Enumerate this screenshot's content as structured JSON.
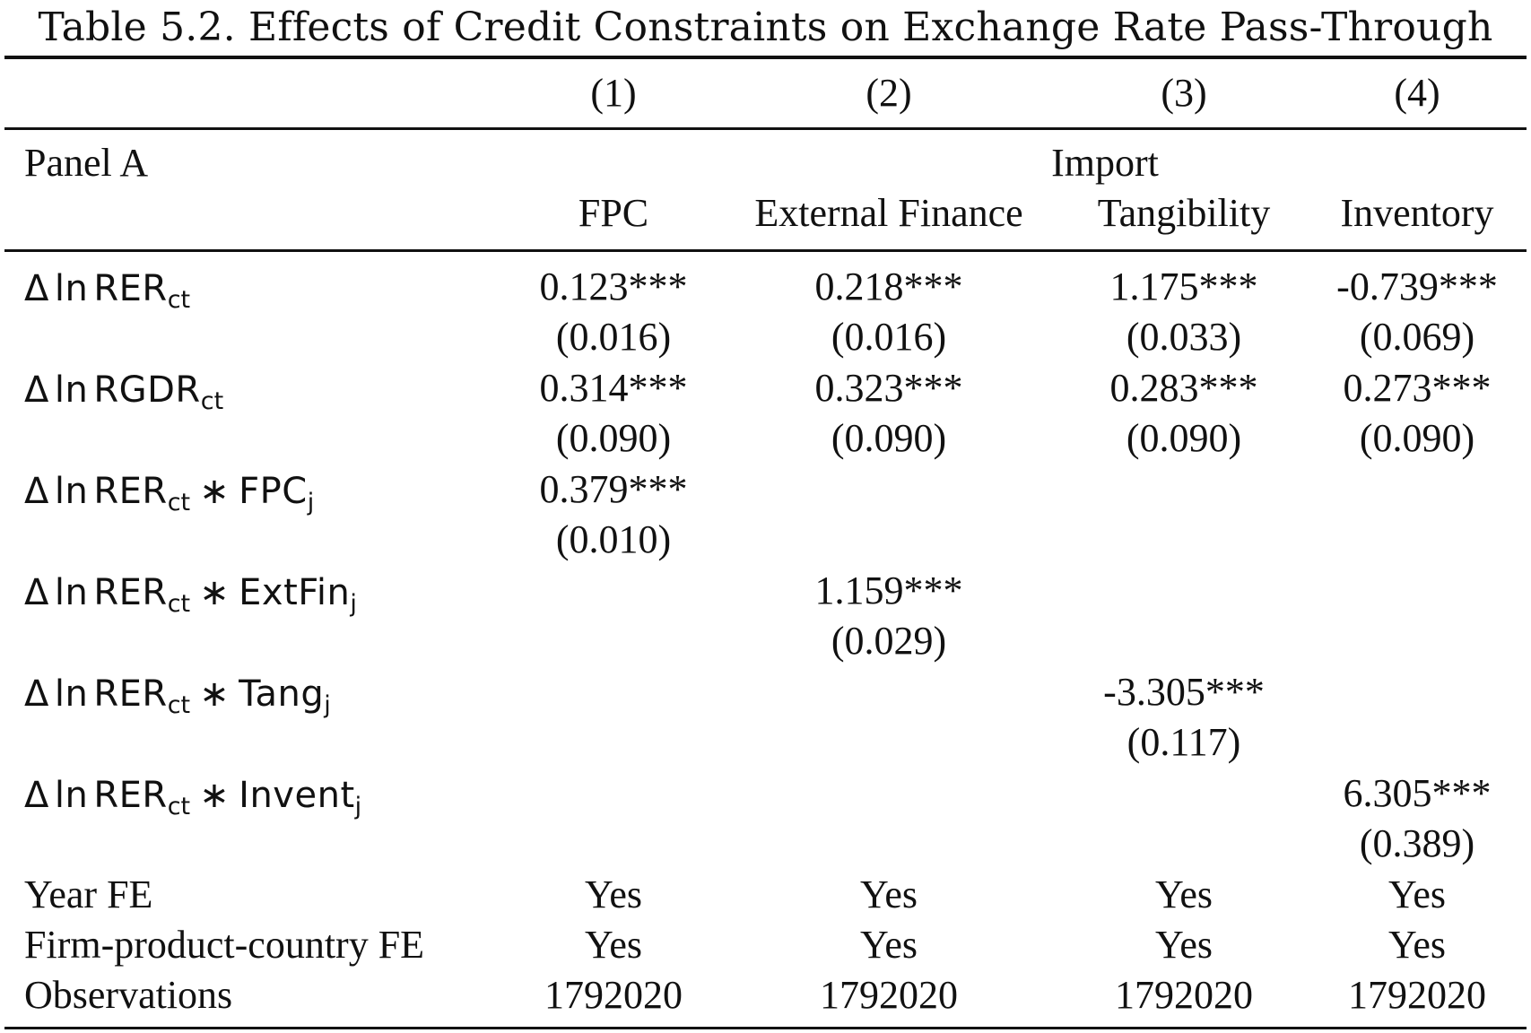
{
  "title": "Table 5.2. Effects of Credit Constraints on Exchange Rate Pass-Through",
  "columns": [
    "(1)",
    "(2)",
    "(3)",
    "(4)"
  ],
  "panel_label": "Panel A",
  "group_header": "Import",
  "subheaders": [
    "FPC",
    "External Finance",
    "Tangibility",
    "Inventory"
  ],
  "math": {
    "delta": "Δ",
    "ln": "ln",
    "op": "∗"
  },
  "rows": [
    {
      "label_base": "RER",
      "label_sub": "ct",
      "label_interaction": "",
      "label_interaction_sub": "",
      "coefs": [
        "0.123***",
        "0.218***",
        "1.175***",
        "-0.739***"
      ],
      "ses": [
        "(0.016)",
        "(0.016)",
        "(0.033)",
        "(0.069)"
      ]
    },
    {
      "label_base": "RGDR",
      "label_sub": "ct",
      "label_interaction": "",
      "label_interaction_sub": "",
      "coefs": [
        "0.314***",
        "0.323***",
        "0.283***",
        "0.273***"
      ],
      "ses": [
        "(0.090)",
        "(0.090)",
        "(0.090)",
        "(0.090)"
      ]
    },
    {
      "label_base": "RER",
      "label_sub": "ct",
      "label_interaction": "FPC",
      "label_interaction_sub": "j",
      "coefs": [
        "0.379***",
        "",
        "",
        ""
      ],
      "ses": [
        "(0.010)",
        "",
        "",
        ""
      ]
    },
    {
      "label_base": "RER",
      "label_sub": "ct",
      "label_interaction": "ExtFin",
      "label_interaction_sub": "j",
      "coefs": [
        "",
        "1.159***",
        "",
        ""
      ],
      "ses": [
        "",
        "(0.029)",
        "",
        ""
      ]
    },
    {
      "label_base": "RER",
      "label_sub": "ct",
      "label_interaction": "Tang",
      "label_interaction_sub": "j",
      "coefs": [
        "",
        "",
        "-3.305***",
        ""
      ],
      "ses": [
        "",
        "",
        "(0.117)",
        ""
      ]
    },
    {
      "label_base": "RER",
      "label_sub": "ct",
      "label_interaction": "Invent",
      "label_interaction_sub": "j",
      "coefs": [
        "",
        "",
        "",
        "6.305***"
      ],
      "ses": [
        "",
        "",
        "",
        "(0.389)"
      ]
    }
  ],
  "footer_rows": [
    {
      "label": "Year FE",
      "values": [
        "Yes",
        "Yes",
        "Yes",
        "Yes"
      ]
    },
    {
      "label": "Firm-product-country FE",
      "values": [
        "Yes",
        "Yes",
        "Yes",
        "Yes"
      ]
    },
    {
      "label": "Observations",
      "values": [
        "1792020",
        "1792020",
        "1792020",
        "1792020"
      ]
    }
  ]
}
